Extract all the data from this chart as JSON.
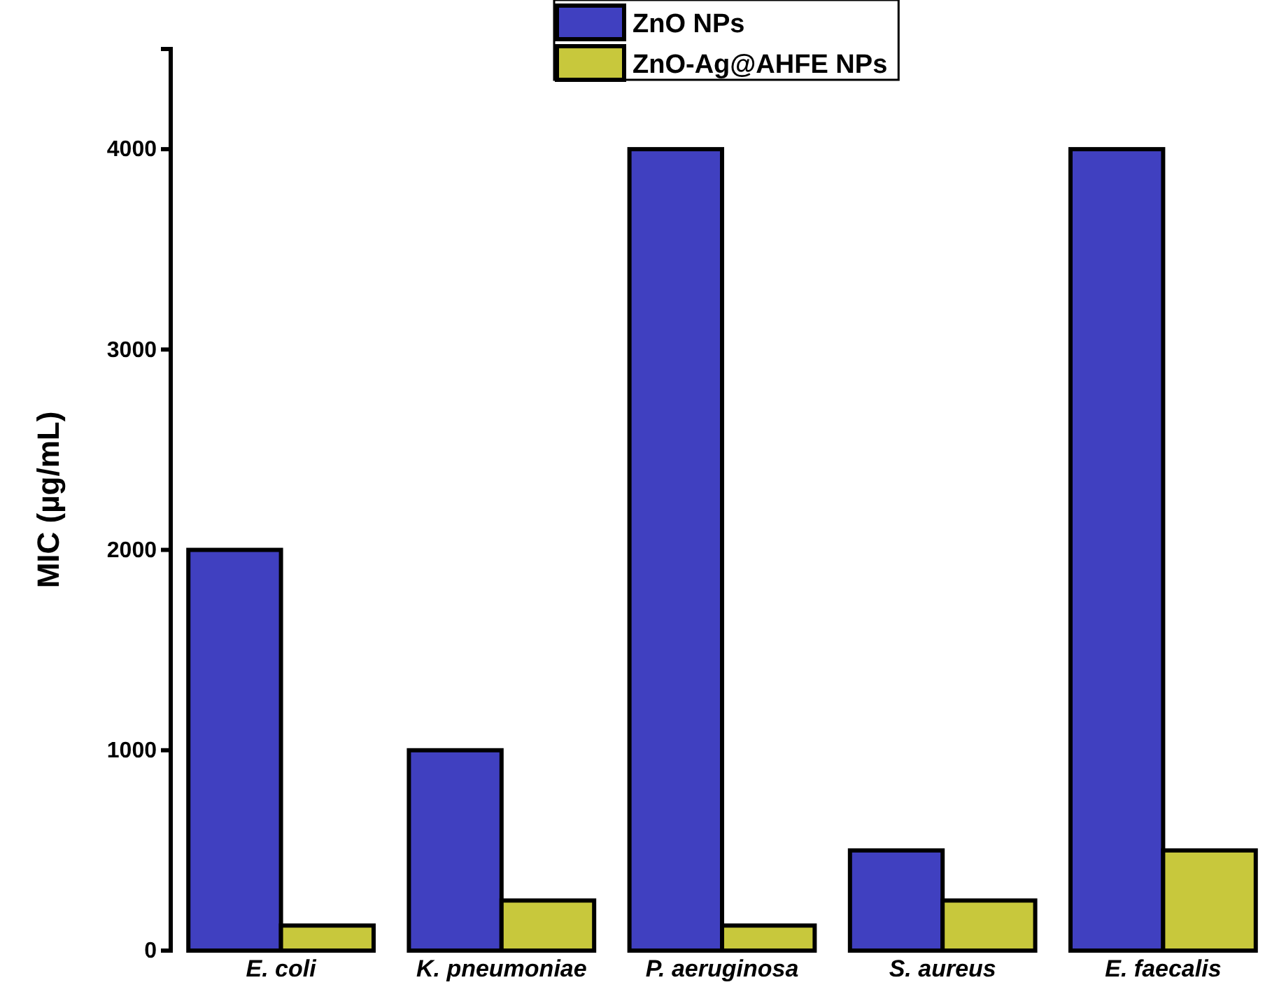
{
  "chart_data": {
    "type": "bar",
    "ylabel": "MIC (µg/mL)",
    "categories": [
      "E. coli",
      "K. pneumoniae",
      "P. aeruginosa",
      "S. aureus",
      "E. faecalis"
    ],
    "series": [
      {
        "name": "ZnO NPs",
        "color": "#4040c0",
        "values": [
          2000,
          1000,
          4000,
          500,
          4000
        ]
      },
      {
        "name": "ZnO-Ag@AHFE NPs",
        "color": "#c8c83c",
        "values": [
          125,
          250,
          125,
          250,
          500
        ]
      }
    ],
    "ylim": [
      0,
      4500
    ],
    "yticks": [
      0,
      1000,
      2000,
      3000,
      4000
    ],
    "grid": false,
    "legend": "top right"
  }
}
